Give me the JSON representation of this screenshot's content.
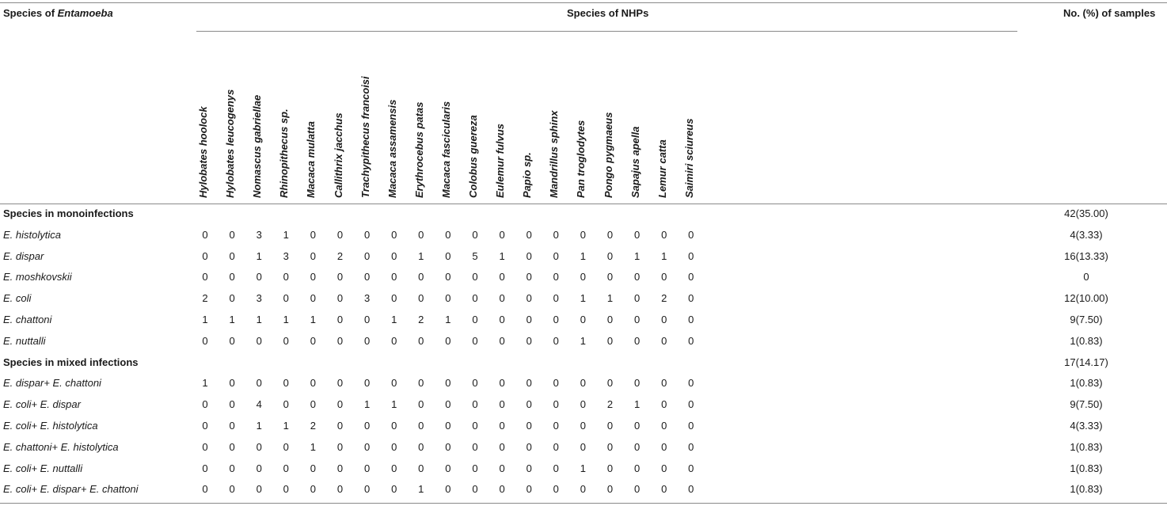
{
  "header": {
    "species_label_prefix": "Species of ",
    "species_label_genus": "Entamoeba",
    "nhp_label": "Species of NHPs",
    "samples_label": "No. (%) of samples"
  },
  "columns": [
    "Hylobates hoolock",
    "Hylobates leucogenys",
    "Nomascus gabriellae",
    "Rhinopithecus sp.",
    "Macaca mulatta",
    "Callithrix jacchus",
    "Trachypithecus francoisi",
    "Macaca assamensis",
    "Erythrocebus patas",
    "Macaca fascicularis",
    "Colobus guereza",
    "Eulemur fulvus",
    "Papio sp.",
    "Mandrillus sphinx",
    "Pan troglodytes",
    "Pongo pygmaeus",
    "Sapajus apella",
    "Lemur catta",
    "Saimiri sciureus"
  ],
  "rows": [
    {
      "label": "Species in monoinfections",
      "section": true,
      "values": [],
      "total": "42(35.00)"
    },
    {
      "label": "E. histolytica",
      "section": false,
      "values": [
        "0",
        "0",
        "3",
        "1",
        "0",
        "0",
        "0",
        "0",
        "0",
        "0",
        "0",
        "0",
        "0",
        "0",
        "0",
        "0",
        "0",
        "0",
        "0"
      ],
      "total": "4(3.33)"
    },
    {
      "label": "E. dispar",
      "section": false,
      "values": [
        "0",
        "0",
        "1",
        "3",
        "0",
        "2",
        "0",
        "0",
        "1",
        "0",
        "5",
        "1",
        "0",
        "0",
        "1",
        "0",
        "1",
        "1",
        "0"
      ],
      "total": "16(13.33)"
    },
    {
      "label": "E. moshkovskii",
      "section": false,
      "values": [
        "0",
        "0",
        "0",
        "0",
        "0",
        "0",
        "0",
        "0",
        "0",
        "0",
        "0",
        "0",
        "0",
        "0",
        "0",
        "0",
        "0",
        "0",
        "0"
      ],
      "total": "0"
    },
    {
      "label": "E. coli",
      "section": false,
      "values": [
        "2",
        "0",
        "3",
        "0",
        "0",
        "0",
        "3",
        "0",
        "0",
        "0",
        "0",
        "0",
        "0",
        "0",
        "1",
        "1",
        "0",
        "2",
        "0"
      ],
      "total": "12(10.00)"
    },
    {
      "label": "E. chattoni",
      "section": false,
      "values": [
        "1",
        "1",
        "1",
        "1",
        "1",
        "0",
        "0",
        "1",
        "2",
        "1",
        "0",
        "0",
        "0",
        "0",
        "0",
        "0",
        "0",
        "0",
        "0"
      ],
      "total": "9(7.50)"
    },
    {
      "label": "E. nuttalli",
      "section": false,
      "values": [
        "0",
        "0",
        "0",
        "0",
        "0",
        "0",
        "0",
        "0",
        "0",
        "0",
        "0",
        "0",
        "0",
        "0",
        "1",
        "0",
        "0",
        "0",
        "0"
      ],
      "total": "1(0.83)"
    },
    {
      "label": "Species in mixed infections",
      "section": true,
      "values": [],
      "total": "17(14.17)"
    },
    {
      "label": "E. dispar+ E. chattoni",
      "section": false,
      "values": [
        "1",
        "0",
        "0",
        "0",
        "0",
        "0",
        "0",
        "0",
        "0",
        "0",
        "0",
        "0",
        "0",
        "0",
        "0",
        "0",
        "0",
        "0",
        "0"
      ],
      "total": "1(0.83)"
    },
    {
      "label": "E. coli+ E. dispar",
      "section": false,
      "values": [
        "0",
        "0",
        "4",
        "0",
        "0",
        "0",
        "1",
        "1",
        "0",
        "0",
        "0",
        "0",
        "0",
        "0",
        "0",
        "2",
        "1",
        "0",
        "0"
      ],
      "total": "9(7.50)"
    },
    {
      "label": "E. coli+ E. histolytica",
      "section": false,
      "values": [
        "0",
        "0",
        "1",
        "1",
        "2",
        "0",
        "0",
        "0",
        "0",
        "0",
        "0",
        "0",
        "0",
        "0",
        "0",
        "0",
        "0",
        "0",
        "0"
      ],
      "total": "4(3.33)"
    },
    {
      "label": "E. chattoni+ E. histolytica",
      "section": false,
      "values": [
        "0",
        "0",
        "0",
        "0",
        "1",
        "0",
        "0",
        "0",
        "0",
        "0",
        "0",
        "0",
        "0",
        "0",
        "0",
        "0",
        "0",
        "0",
        "0"
      ],
      "total": "1(0.83)"
    },
    {
      "label": "E. coli+ E. nuttalli",
      "section": false,
      "values": [
        "0",
        "0",
        "0",
        "0",
        "0",
        "0",
        "0",
        "0",
        "0",
        "0",
        "0",
        "0",
        "0",
        "0",
        "1",
        "0",
        "0",
        "0",
        "0"
      ],
      "total": "1(0.83)"
    },
    {
      "label": "E. coli+ E. dispar+ E. chattoni",
      "section": false,
      "values": [
        "0",
        "0",
        "0",
        "0",
        "0",
        "0",
        "0",
        "0",
        "1",
        "0",
        "0",
        "0",
        "0",
        "0",
        "0",
        "0",
        "0",
        "0",
        "0"
      ],
      "total": "1(0.83)"
    }
  ]
}
